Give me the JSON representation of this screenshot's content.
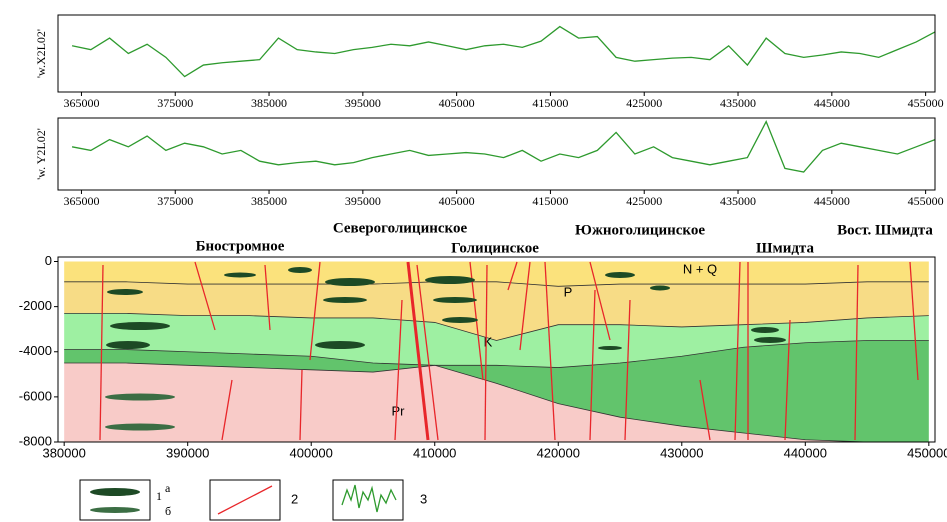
{
  "chart_data": [
    {
      "type": "line",
      "ylabel": "'w.X2L02'",
      "color": "#2e9a2e",
      "x": [
        364000,
        366000,
        368000,
        370000,
        372000,
        374000,
        376000,
        378000,
        380000,
        382000,
        384000,
        386000,
        388000,
        390000,
        392000,
        394000,
        396000,
        398000,
        400000,
        402000,
        404000,
        406000,
        408000,
        410000,
        412000,
        414000,
        416000,
        418000,
        420000,
        422000,
        424000,
        426000,
        428000,
        430000,
        432000,
        434000,
        436000,
        438000,
        440000,
        442000,
        444000,
        446000,
        448000,
        450000,
        452000,
        454000,
        456000
      ],
      "values": [
        60,
        55,
        70,
        50,
        62,
        45,
        20,
        35,
        38,
        40,
        42,
        70,
        55,
        52,
        50,
        55,
        58,
        62,
        60,
        65,
        60,
        55,
        60,
        62,
        58,
        66,
        85,
        70,
        72,
        45,
        40,
        42,
        44,
        45,
        42,
        60,
        35,
        70,
        50,
        45,
        48,
        52,
        50,
        45,
        55,
        65,
        78
      ],
      "xlim": [
        362500,
        456000
      ],
      "ylim": [
        0,
        100
      ],
      "xticks": [
        365000,
        375000,
        385000,
        395000,
        405000,
        415000,
        425000,
        435000,
        445000,
        455000
      ]
    },
    {
      "type": "line",
      "ylabel": "'w. Y2L02'",
      "color": "#2e9a2e",
      "x": [
        364000,
        366000,
        368000,
        370000,
        372000,
        374000,
        376000,
        378000,
        380000,
        382000,
        384000,
        386000,
        388000,
        390000,
        392000,
        394000,
        396000,
        398000,
        400000,
        402000,
        404000,
        406000,
        408000,
        410000,
        412000,
        414000,
        416000,
        418000,
        420000,
        422000,
        424000,
        426000,
        428000,
        430000,
        432000,
        434000,
        436000,
        438000,
        440000,
        442000,
        444000,
        446000,
        448000,
        450000,
        452000,
        454000,
        456000
      ],
      "values": [
        60,
        55,
        70,
        60,
        75,
        55,
        65,
        60,
        50,
        55,
        40,
        35,
        38,
        40,
        35,
        38,
        45,
        50,
        55,
        48,
        50,
        52,
        50,
        45,
        55,
        40,
        50,
        45,
        55,
        80,
        50,
        60,
        45,
        40,
        35,
        40,
        45,
        95,
        30,
        25,
        55,
        65,
        60,
        55,
        50,
        60,
        70
      ],
      "xlim": [
        362500,
        456000
      ],
      "ylim": [
        0,
        100
      ],
      "xticks": [
        365000,
        375000,
        385000,
        395000,
        405000,
        415000,
        425000,
        435000,
        445000,
        455000
      ]
    },
    {
      "type": "section",
      "annotations": [
        "Бностромное",
        "Североголицинское",
        "Голицинское",
        "Южноголицинское",
        "Шмидта",
        "Вост. Шмидта"
      ],
      "x": [
        380000,
        385000,
        390000,
        395000,
        400000,
        405000,
        410000,
        415000,
        420000,
        425000,
        430000,
        435000,
        440000,
        445000,
        450000
      ],
      "series": [
        {
          "name": "N + Q",
          "color": "#fbe27c",
          "values": [
            -900,
            -900,
            -1000,
            -1000,
            -1000,
            -1000,
            -900,
            -900,
            -1100,
            -1000,
            -1000,
            -1000,
            -1000,
            -900,
            -900
          ]
        },
        {
          "name": "P",
          "color": "#f7dc86",
          "values": [
            -2300,
            -2300,
            -2400,
            -2400,
            -2500,
            -2500,
            -2700,
            -3500,
            -2800,
            -2800,
            -2900,
            -2800,
            -2700,
            -2500,
            -2400
          ]
        },
        {
          "name": "K",
          "color": "#9ef0a2",
          "values": [
            -3900,
            -3900,
            -4000,
            -4100,
            -4200,
            -4500,
            -4600,
            -4600,
            -4700,
            -4500,
            -4200,
            -3800,
            -3600,
            -3500,
            -3500
          ]
        },
        {
          "color": "#62c46c",
          "values": [
            -4500,
            -4500,
            -4600,
            -4700,
            -4800,
            -4900,
            -4600,
            -5400,
            -6300,
            -6900,
            -7300,
            -7600,
            -7900,
            -8000,
            -8000
          ]
        },
        {
          "name": "Pr",
          "color": "#f8cbc8",
          "values": [
            -8000,
            -8000,
            -8000,
            -8000,
            -8000,
            -8000,
            -8000,
            -8000,
            -8000,
            -8000,
            -8000,
            -8000,
            -8000,
            -8000,
            -8000
          ]
        }
      ],
      "xlim": [
        379500,
        450500
      ],
      "ylim": [
        -8000,
        200
      ],
      "xticks": [
        380000,
        390000,
        400000,
        410000,
        420000,
        430000,
        440000,
        450000
      ],
      "yticks": [
        0,
        -2000,
        -4000,
        -6000,
        -8000
      ]
    }
  ],
  "legend": {
    "items": [
      "1",
      "2",
      "3"
    ],
    "sub": [
      "а",
      "б"
    ]
  }
}
